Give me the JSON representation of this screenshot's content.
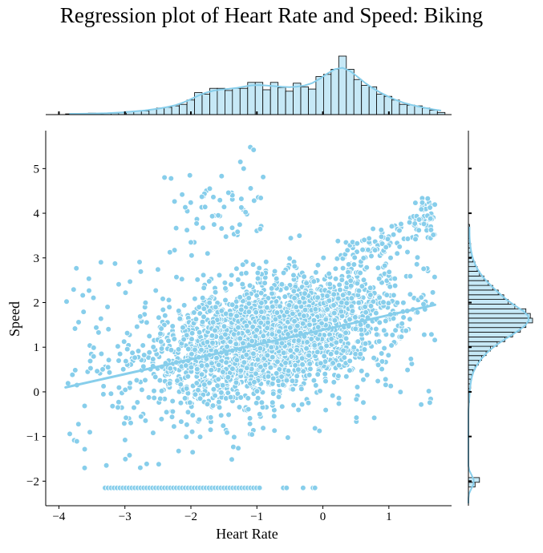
{
  "chart_data": {
    "type": "scatter",
    "title": "Regression plot of Heart Rate and Speed: Biking",
    "xlabel": "Heart Rate",
    "ylabel": "Speed",
    "xlim": [
      -4.2,
      1.95
    ],
    "ylim": [
      -2.55,
      5.85
    ],
    "xticks": [
      -4,
      -3,
      -2,
      -1,
      0,
      1
    ],
    "yticks": [
      -2,
      -1,
      0,
      1,
      2,
      3,
      4,
      5
    ],
    "xtick_labels": [
      "−4",
      "−3",
      "−2",
      "−1",
      "0",
      "1"
    ],
    "ytick_labels": [
      "−2",
      "−1",
      "0",
      "1",
      "2",
      "3",
      "4",
      "5"
    ],
    "colors": {
      "points": "#87ceeb",
      "point_edge": "#ffffff",
      "regression_line": "#87ceeb",
      "hist_fill": "#c6e8f6",
      "hist_edge": "#000000",
      "kde": "#87ceeb"
    },
    "regression_line": {
      "x": [
        -3.9,
        1.7
      ],
      "y": [
        0.1,
        1.95
      ]
    },
    "point_cloud": {
      "description": "approx. 12000 samples, dense cloud centered near heart rate -0.8, speed 1.2",
      "center": [
        -0.8,
        1.2
      ],
      "spread": [
        0.9,
        0.65
      ],
      "floor_value": -2.15,
      "floor_x_range": [
        -3.3,
        -0.95
      ]
    },
    "top_histogram": {
      "bin_edges_start": -3.9,
      "bin_width": 0.115,
      "counts": [
        1,
        1,
        1,
        2,
        1,
        2,
        2,
        3,
        4,
        5,
        5,
        7,
        9,
        10,
        12,
        14,
        20,
        30,
        28,
        36,
        36,
        33,
        36,
        36,
        44,
        44,
        34,
        44,
        37,
        32,
        43,
        38,
        35,
        52,
        55,
        62,
        80,
        62,
        48,
        40,
        38,
        28,
        25,
        20,
        14,
        13,
        12,
        9,
        6,
        3
      ]
    },
    "right_histogram": {
      "bin_edges_start": -2.55,
      "bin_width": 0.105,
      "counts": [
        0,
        0,
        0,
        0,
        6,
        10,
        0,
        0,
        0,
        0,
        0,
        0,
        0,
        0,
        0,
        0,
        0,
        0,
        0,
        0,
        0,
        0,
        1,
        1,
        1,
        2,
        2,
        3,
        4,
        6,
        9,
        12,
        16,
        20,
        26,
        33,
        40,
        47,
        52,
        58,
        56,
        52,
        42,
        36,
        32,
        27,
        22,
        18,
        14,
        10,
        8,
        6,
        4,
        3,
        2,
        2,
        1,
        1,
        1,
        1
      ]
    }
  }
}
